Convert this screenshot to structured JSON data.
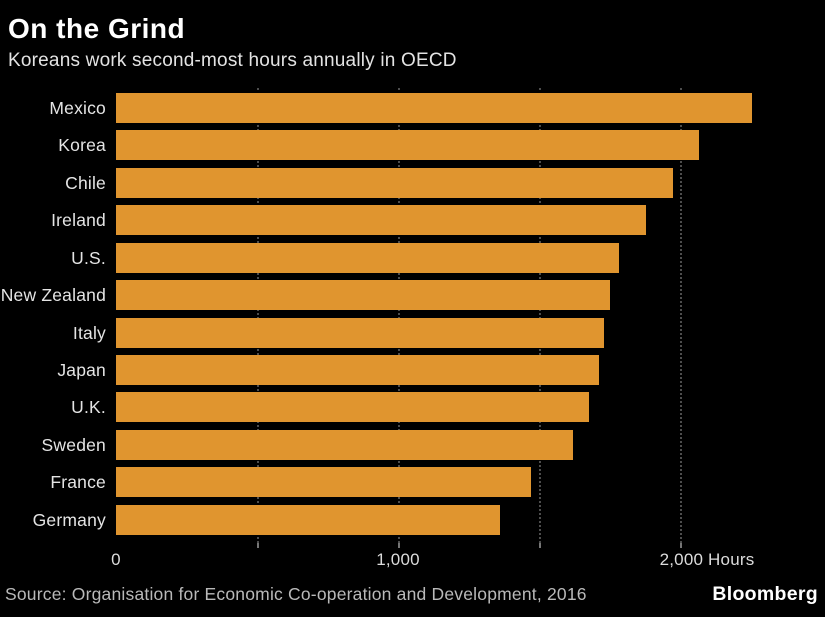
{
  "header": {
    "title": "On the Grind",
    "subtitle": "Koreans work second-most hours annually in OECD"
  },
  "chart_data": {
    "type": "bar",
    "orientation": "horizontal",
    "title": "On the Grind",
    "subtitle": "Koreans work second-most hours annually in OECD",
    "categories": [
      "Mexico",
      "Korea",
      "Chile",
      "Ireland",
      "U.S.",
      "New Zealand",
      "Italy",
      "Japan",
      "U.K.",
      "Sweden",
      "France",
      "Germany"
    ],
    "values": [
      2255,
      2069,
      1974,
      1879,
      1783,
      1752,
      1730,
      1713,
      1676,
      1621,
      1472,
      1363
    ],
    "xlabel": "Hours",
    "ylabel": "",
    "xlim": [
      0,
      2500
    ],
    "x_ticks": [
      {
        "value": 0,
        "label": "0"
      },
      {
        "value": 1000,
        "label": "1,000"
      },
      {
        "value": 2000,
        "label": "2,000 Hours"
      }
    ],
    "gridline_values": [
      500,
      1000,
      1500,
      2000
    ],
    "grid": "dotted-vertical-gridlines",
    "legend": "none",
    "bar_color": "#E0952F"
  },
  "footer": {
    "source": "Source: Organisation for Economic Co-operation and Development, 2016",
    "brand": "Bloomberg"
  },
  "colors": {
    "background": "#000000",
    "bar": "#E0952F",
    "title_text": "#FFFFFF",
    "subtitle_text": "#E3E3E3",
    "label_text": "#E4E4E4",
    "axis_text": "#DCDCDC",
    "source_text": "#B9B9B9",
    "gridline": "#4D4D4D"
  }
}
